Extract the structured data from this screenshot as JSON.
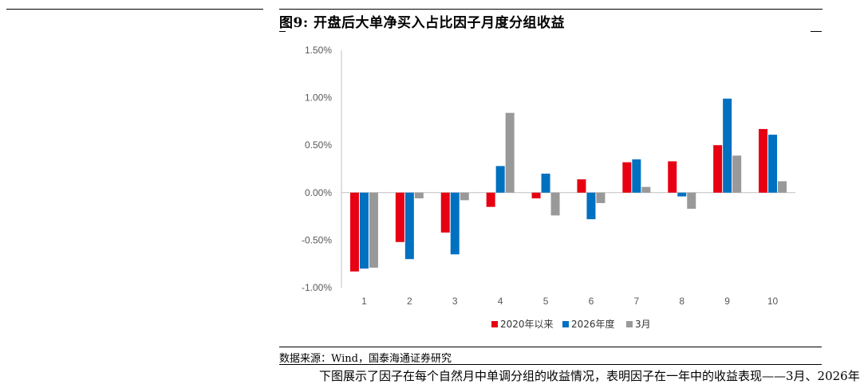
{
  "figure": {
    "title": "图9:  开盘后大单净买入占比因子月度分组收益",
    "source": "数据来源：Wind，国泰海通证券研究",
    "bottom_text": "下图展示了因子在每个自然月中单调分组的收益情况，表明因子在一年中的收益表现——3月、2026年"
  },
  "chart_data": {
    "type": "bar",
    "categories": [
      "1",
      "2",
      "3",
      "4",
      "5",
      "6",
      "7",
      "8",
      "9",
      "10"
    ],
    "series": [
      {
        "name": "2020年以来",
        "color": "#e60012",
        "values": [
          -0.0083,
          -0.0052,
          -0.0042,
          -0.0015,
          -0.0006,
          0.0014,
          0.0032,
          0.0033,
          0.005,
          0.0067
        ]
      },
      {
        "name": "2026年度",
        "color": "#0070c0",
        "values": [
          -0.008,
          -0.007,
          -0.0065,
          0.0028,
          0.002,
          -0.0028,
          0.0035,
          -0.0004,
          0.0099,
          0.0061
        ]
      },
      {
        "name": "3月",
        "color": "#999999",
        "values": [
          -0.0079,
          -0.0006,
          -0.0008,
          0.0084,
          -0.0024,
          -0.0011,
          0.0006,
          -0.0017,
          0.0039,
          0.0012
        ]
      }
    ],
    "ylim": [
      -0.01,
      0.015
    ],
    "yticks": [
      "1.50%",
      "1.00%",
      "0.50%",
      "0.00%",
      "-0.50%",
      "-1.00%"
    ],
    "ytick_values": [
      0.015,
      0.01,
      0.005,
      0,
      -0.005,
      -0.01
    ],
    "legend_position": "bottom-center",
    "grid": false
  }
}
